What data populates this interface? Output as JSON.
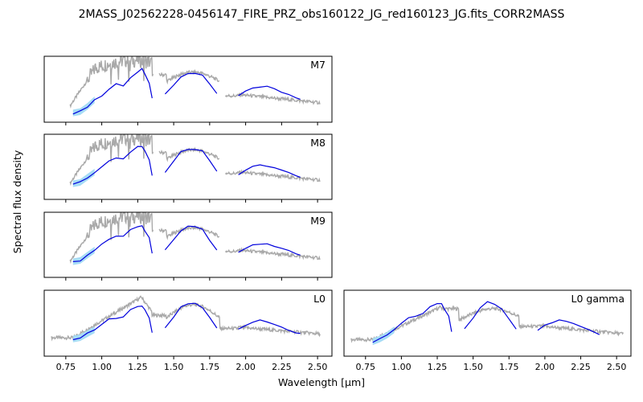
{
  "figure": {
    "title": "2MASS_J02562228-0456147_FIRE_PRZ_obs160122_JG_red160123_JG.fits_CORR2MASS",
    "xlabel": "Wavelength [$\\mu m$]",
    "ylabel": "Spectral flux density"
  },
  "colors": {
    "target": "#0000dd",
    "target_error": "#a6dcf5",
    "template": "#a9a9a9"
  },
  "chart_data": [
    {
      "type": "line",
      "panel_label": "M7",
      "xlim": [
        0.6,
        2.6
      ],
      "show_xticklabels": false,
      "template_shape": "late_m",
      "template_scale": 1.0,
      "series": [
        {
          "role": "target",
          "x": [
            0.8,
            0.85,
            0.9,
            0.95,
            1.0,
            1.05,
            1.1,
            1.15,
            1.2,
            1.25,
            1.28,
            1.3,
            1.33,
            1.35
          ],
          "y": [
            0.14,
            0.16,
            0.24,
            0.34,
            0.4,
            0.5,
            0.58,
            0.56,
            0.68,
            0.76,
            0.8,
            0.72,
            0.6,
            0.35
          ]
        },
        {
          "role": "target",
          "x": [
            1.44,
            1.5,
            1.55,
            1.6,
            1.65,
            1.7,
            1.75,
            1.8
          ],
          "y": [
            0.42,
            0.56,
            0.68,
            0.74,
            0.75,
            0.72,
            0.58,
            0.45
          ]
        },
        {
          "role": "target",
          "x": [
            1.95,
            2.0,
            2.05,
            2.1,
            2.15,
            2.2,
            2.25,
            2.3,
            2.35,
            2.38
          ],
          "y": [
            0.4,
            0.46,
            0.52,
            0.54,
            0.54,
            0.5,
            0.46,
            0.42,
            0.38,
            0.36
          ]
        }
      ]
    },
    {
      "type": "line",
      "panel_label": "M8",
      "xlim": [
        0.6,
        2.6
      ],
      "show_xticklabels": false,
      "template_shape": "late_m",
      "template_scale": 1.0,
      "series": [
        {
          "role": "target",
          "x": [
            0.8,
            0.85,
            0.9,
            0.95,
            1.0,
            1.05,
            1.1,
            1.15,
            1.2,
            1.25,
            1.28,
            1.3,
            1.33,
            1.35
          ],
          "y": [
            0.24,
            0.26,
            0.34,
            0.42,
            0.5,
            0.58,
            0.64,
            0.62,
            0.72,
            0.8,
            0.82,
            0.74,
            0.62,
            0.38
          ]
        },
        {
          "role": "target",
          "x": [
            1.44,
            1.5,
            1.55,
            1.6,
            1.65,
            1.7,
            1.75,
            1.8
          ],
          "y": [
            0.42,
            0.58,
            0.72,
            0.78,
            0.78,
            0.74,
            0.6,
            0.44
          ]
        },
        {
          "role": "target",
          "x": [
            1.95,
            2.0,
            2.05,
            2.1,
            2.15,
            2.2,
            2.25,
            2.3,
            2.35,
            2.38
          ],
          "y": [
            0.38,
            0.44,
            0.5,
            0.52,
            0.52,
            0.48,
            0.44,
            0.4,
            0.36,
            0.34
          ]
        }
      ]
    },
    {
      "type": "line",
      "panel_label": "M9",
      "xlim": [
        0.6,
        2.6
      ],
      "show_xticklabels": false,
      "template_shape": "late_m",
      "template_scale": 1.0,
      "series": [
        {
          "role": "target",
          "x": [
            0.8,
            0.85,
            0.9,
            0.95,
            1.0,
            1.05,
            1.1,
            1.15,
            1.2,
            1.25,
            1.28,
            1.3,
            1.33,
            1.35
          ],
          "y": [
            0.24,
            0.26,
            0.34,
            0.42,
            0.5,
            0.58,
            0.64,
            0.62,
            0.72,
            0.78,
            0.8,
            0.72,
            0.6,
            0.36
          ]
        },
        {
          "role": "target",
          "x": [
            1.44,
            1.5,
            1.55,
            1.6,
            1.65,
            1.7,
            1.75,
            1.8
          ],
          "y": [
            0.42,
            0.58,
            0.72,
            0.78,
            0.78,
            0.74,
            0.58,
            0.42
          ]
        },
        {
          "role": "target",
          "x": [
            1.95,
            2.0,
            2.05,
            2.1,
            2.15,
            2.2,
            2.25,
            2.3,
            2.35,
            2.38
          ],
          "y": [
            0.38,
            0.44,
            0.5,
            0.52,
            0.52,
            0.48,
            0.44,
            0.4,
            0.36,
            0.34
          ]
        }
      ]
    },
    {
      "type": "line",
      "panel_label": "L0",
      "xlim": [
        0.6,
        2.6
      ],
      "show_xticklabels": true,
      "template_shape": "early_l",
      "template_scale": 1.0,
      "series": [
        {
          "role": "target",
          "x": [
            0.8,
            0.85,
            0.9,
            0.95,
            1.0,
            1.05,
            1.1,
            1.15,
            1.2,
            1.25,
            1.28,
            1.3,
            1.33,
            1.35
          ],
          "y": [
            0.26,
            0.28,
            0.34,
            0.4,
            0.48,
            0.56,
            0.58,
            0.6,
            0.7,
            0.74,
            0.76,
            0.7,
            0.58,
            0.36
          ]
        },
        {
          "role": "target",
          "x": [
            1.44,
            1.5,
            1.55,
            1.6,
            1.65,
            1.7,
            1.75,
            1.8
          ],
          "y": [
            0.42,
            0.58,
            0.74,
            0.8,
            0.8,
            0.74,
            0.58,
            0.42
          ]
        },
        {
          "role": "target",
          "x": [
            1.95,
            2.0,
            2.05,
            2.1,
            2.15,
            2.2,
            2.25,
            2.3,
            2.35,
            2.38
          ],
          "y": [
            0.4,
            0.46,
            0.52,
            0.54,
            0.52,
            0.48,
            0.44,
            0.4,
            0.36,
            0.34
          ]
        }
      ]
    },
    {
      "type": "line",
      "panel_label": "L0 gamma",
      "xlim": [
        0.6,
        2.6
      ],
      "show_xticklabels": true,
      "template_shape": "young_l",
      "template_scale": 1.0,
      "series": [
        {
          "role": "target",
          "x": [
            0.8,
            0.85,
            0.9,
            0.95,
            1.0,
            1.05,
            1.1,
            1.15,
            1.2,
            1.25,
            1.28,
            1.3,
            1.33,
            1.35
          ],
          "y": [
            0.22,
            0.26,
            0.32,
            0.4,
            0.5,
            0.58,
            0.62,
            0.64,
            0.74,
            0.8,
            0.8,
            0.72,
            0.6,
            0.36
          ]
        },
        {
          "role": "target",
          "x": [
            1.44,
            1.5,
            1.55,
            1.6,
            1.65,
            1.7,
            1.75,
            1.8
          ],
          "y": [
            0.42,
            0.58,
            0.74,
            0.82,
            0.8,
            0.72,
            0.56,
            0.4
          ]
        },
        {
          "role": "target",
          "x": [
            1.95,
            2.0,
            2.05,
            2.1,
            2.15,
            2.2,
            2.25,
            2.3,
            2.35,
            2.38
          ],
          "y": [
            0.4,
            0.46,
            0.52,
            0.54,
            0.52,
            0.48,
            0.44,
            0.4,
            0.36,
            0.34
          ]
        }
      ]
    }
  ]
}
